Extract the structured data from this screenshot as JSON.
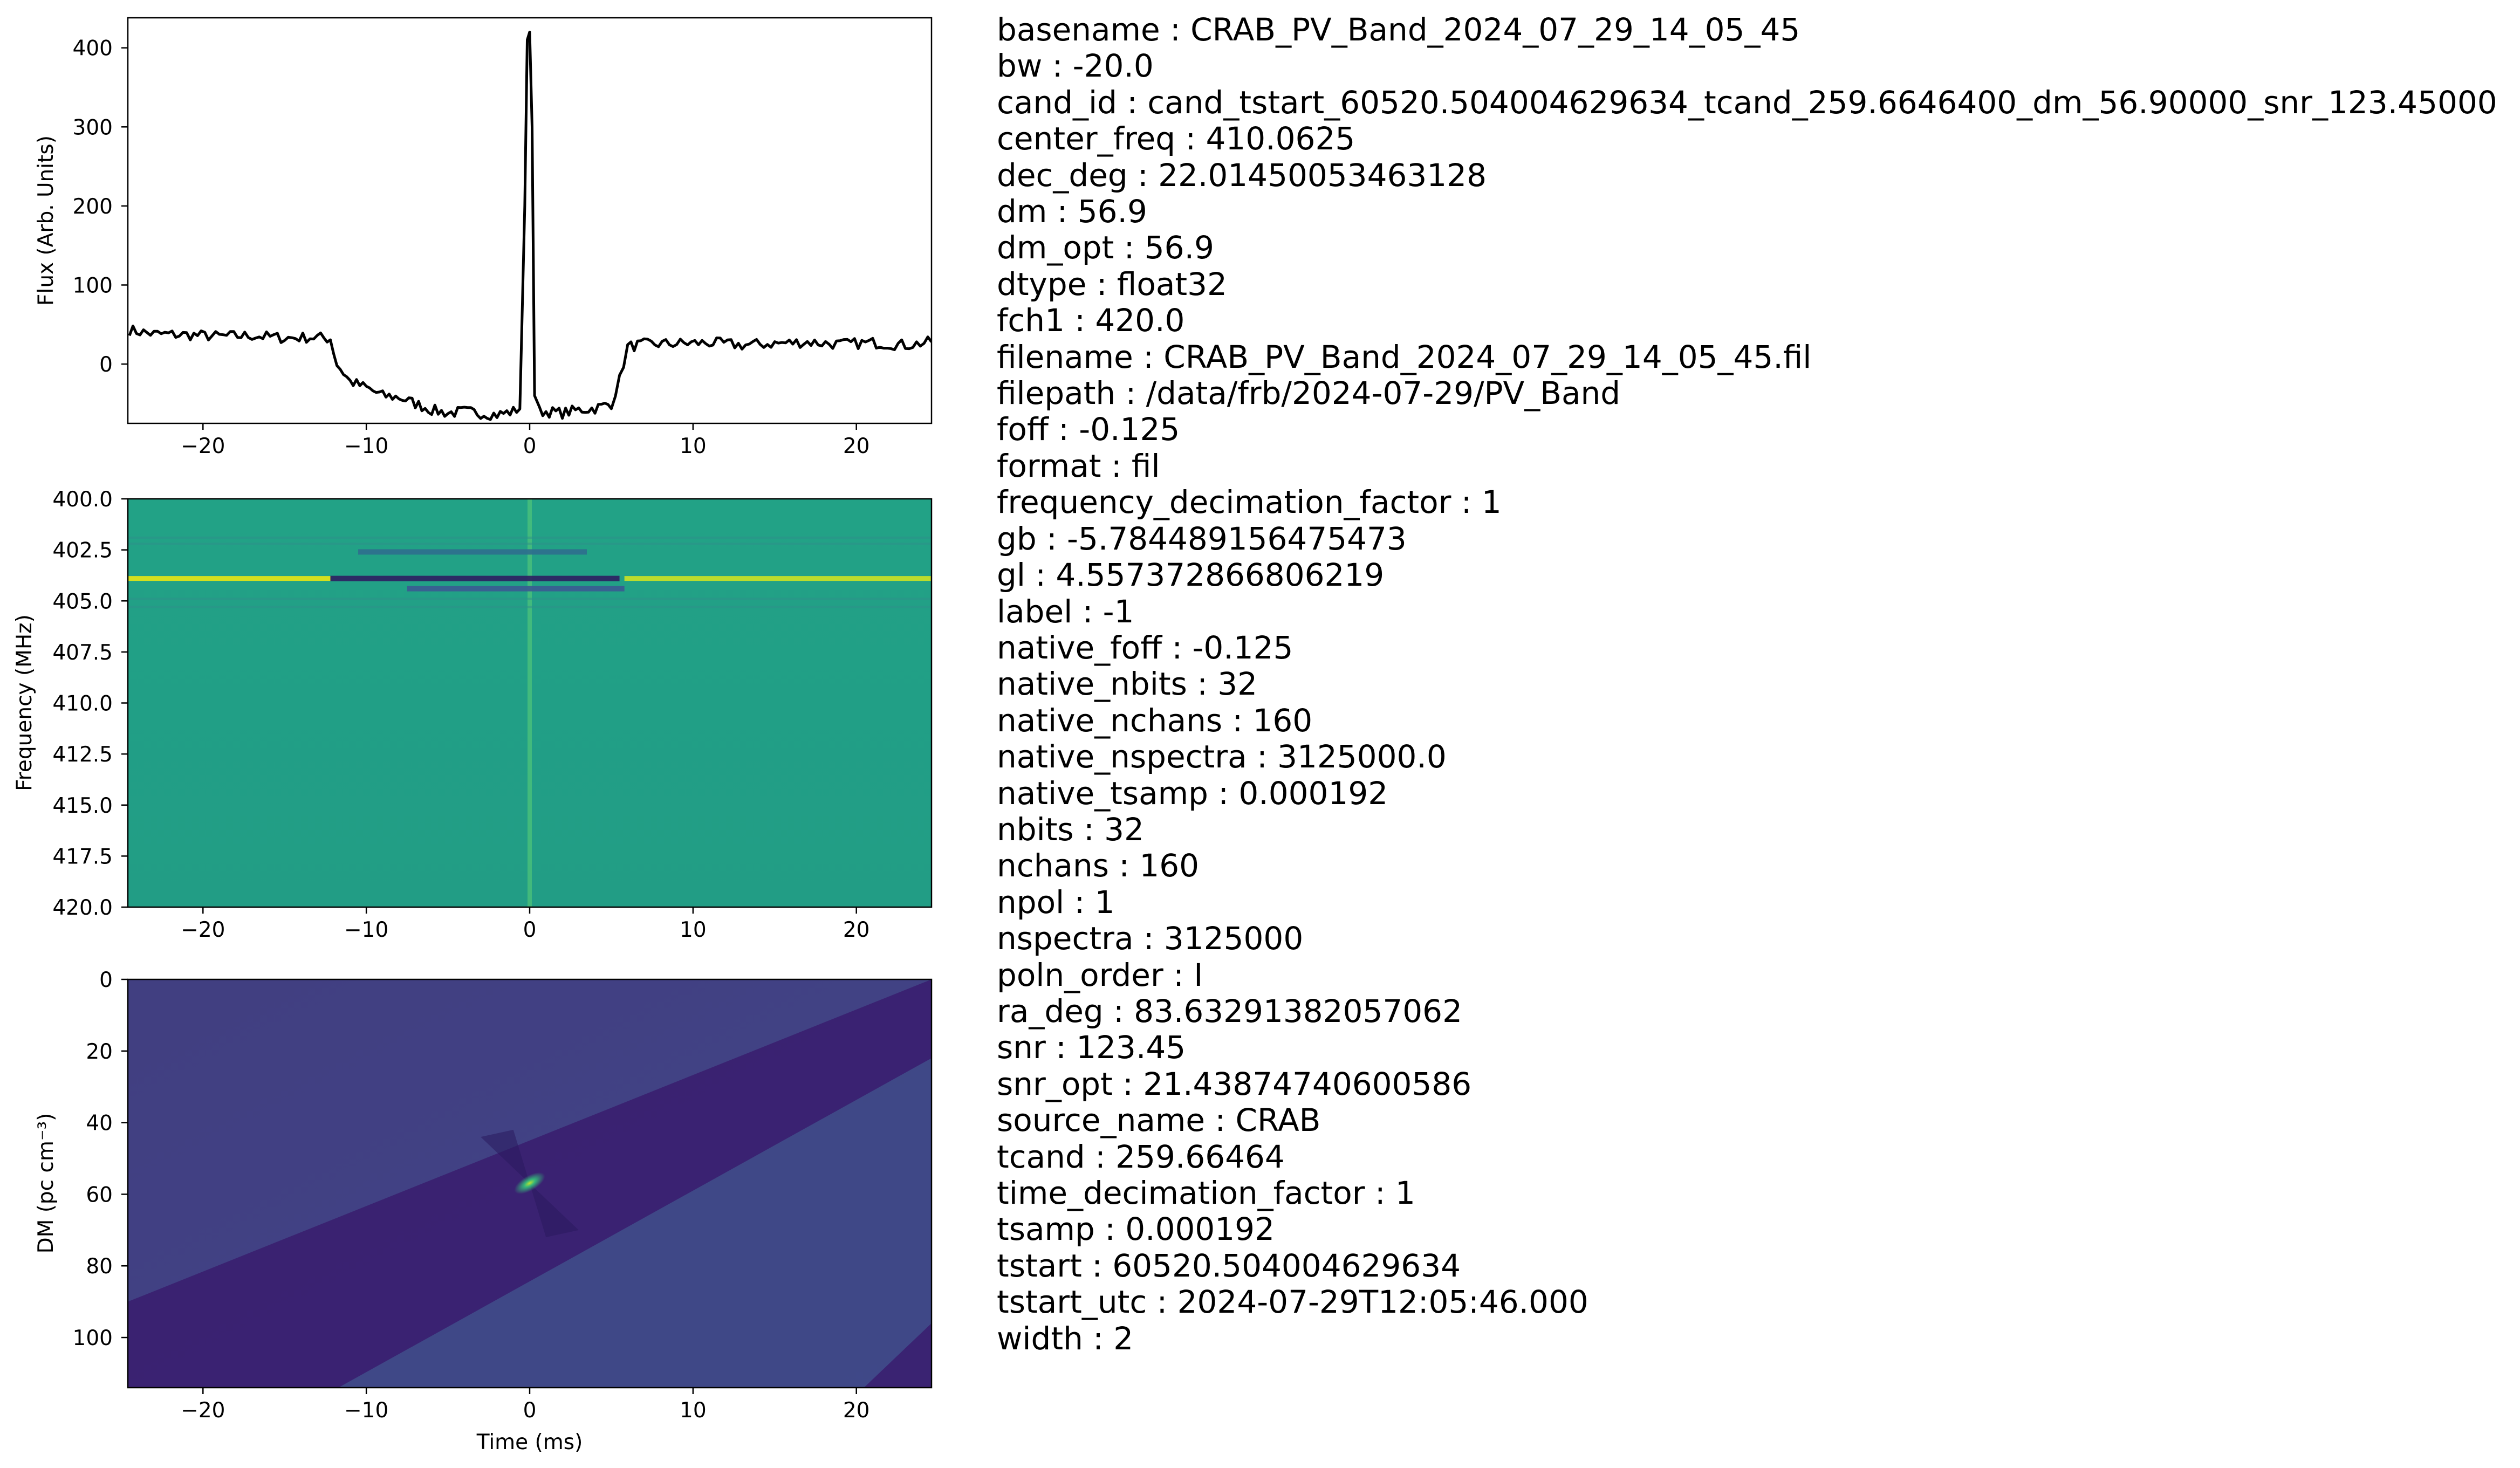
{
  "figure": {
    "panels": [
      {
        "id": "time-series",
        "ylabel": "Flux (Arb. Units)",
        "xlabel": "",
        "xticks": [
          "−20",
          "−10",
          "0",
          "10",
          "20"
        ],
        "yticks": [
          "0",
          "100",
          "200",
          "300",
          "400"
        ]
      },
      {
        "id": "dynamic-spectrum",
        "ylabel": "Frequency (MHz)",
        "xlabel": "",
        "xticks": [
          "−20",
          "−10",
          "0",
          "10",
          "20"
        ],
        "yticks": [
          "400.0",
          "402.5",
          "405.0",
          "407.5",
          "410.0",
          "412.5",
          "415.0",
          "417.5",
          "420.0"
        ]
      },
      {
        "id": "dm-time",
        "ylabel": "DM (pc cm⁻³)",
        "xlabel": "Time (ms)",
        "xticks": [
          "−20",
          "−10",
          "0",
          "10",
          "20"
        ],
        "yticks": [
          "0",
          "20",
          "40",
          "60",
          "80",
          "100"
        ]
      }
    ],
    "colors": {
      "line": "#000000",
      "viridis_mid": "#21a085",
      "viridis_dark": "#3b2f7e",
      "viridis_deep": "#3f1a6a",
      "viridis_bright": "#dde318"
    }
  },
  "chart_data": [
    {
      "type": "line",
      "title": "",
      "xlabel": "",
      "ylabel": "Flux (Arb. Units)",
      "xlim": [
        -24.6,
        24.6
      ],
      "ylim": [
        -75,
        438
      ],
      "series": [
        {
          "x": [
            -24.5,
            -23,
            -21,
            -19,
            -17,
            -15,
            -13,
            -12.2,
            -11.8,
            -11,
            -10,
            -9,
            -8,
            -7,
            -6,
            -5,
            -4,
            -3,
            -2,
            -1,
            -0.6,
            -0.3,
            -0.15,
            0,
            0.15,
            0.3,
            0.6,
            1,
            2,
            3,
            4,
            5,
            5.5,
            6,
            7,
            9,
            11,
            13,
            15,
            17,
            19,
            21,
            23,
            24.6
          ],
          "y": [
            43,
            38,
            37,
            35,
            36,
            33,
            34,
            32,
            0,
            -22,
            -30,
            -40,
            -42,
            -50,
            -58,
            -62,
            -60,
            -62,
            -64,
            -60,
            -55,
            200,
            410,
            420,
            300,
            -40,
            -60,
            -60,
            -62,
            -58,
            -56,
            -50,
            -20,
            22,
            25,
            26,
            27,
            24,
            26,
            28,
            25,
            27,
            24,
            28
          ]
        }
      ]
    },
    {
      "type": "heatmap",
      "title": "",
      "xlabel": "",
      "ylabel": "Frequency (MHz)",
      "xlim": [
        -24.6,
        24.6
      ],
      "ylim": [
        420.0,
        400.0
      ],
      "features": [
        {
          "kind": "vertical-line",
          "x": 0,
          "freq_range": [
            400.0,
            420.0
          ],
          "color": "#4dc37a"
        },
        {
          "kind": "rfi-bright-channel",
          "freq": 403.9,
          "x_range": [
            -24.6,
            -12.2
          ],
          "color": "#dde318"
        },
        {
          "kind": "rfi-bright-channel",
          "freq": 403.9,
          "x_range": [
            5.8,
            24.6
          ],
          "color": "#c4df28"
        },
        {
          "kind": "dark-channel",
          "freq": 403.9,
          "x_range": [
            -12.2,
            5.5
          ],
          "color": "#2d1f62"
        },
        {
          "kind": "dark-channel",
          "freq": 402.6,
          "x_range": [
            -10.5,
            3.5
          ],
          "color": "#2f6e8e"
        },
        {
          "kind": "dark-channel",
          "freq": 404.4,
          "x_range": [
            -7.5,
            5.8
          ],
          "color": "#3b5a92"
        }
      ]
    },
    {
      "type": "heatmap",
      "title": "",
      "xlabel": "Time (ms)",
      "ylabel": "DM (pc cm⁻³)",
      "xlim": [
        -24.6,
        24.6
      ],
      "ylim": [
        114,
        0
      ],
      "features": [
        {
          "kind": "peak",
          "x": 0,
          "dm": 56.9,
          "color": "#7fd34e"
        },
        {
          "kind": "dark-diagonal-band",
          "color": "#3a1c6e"
        },
        {
          "kind": "dark-corner-band",
          "color": "#3a1c6e"
        }
      ]
    }
  ],
  "metadata": [
    "basename : CRAB_PV_Band_2024_07_29_14_05_45",
    "bw : -20.0",
    "cand_id : cand_tstart_60520.504004629634_tcand_259.6646400_dm_56.90000_snr_123.45000",
    "center_freq : 410.0625",
    "dec_deg : 22.01450053463128",
    "dm : 56.9",
    "dm_opt : 56.9",
    "dtype : float32",
    "fch1 : 420.0",
    "filename : CRAB_PV_Band_2024_07_29_14_05_45.fil",
    "filepath : /data/frb/2024-07-29/PV_Band",
    "foff : -0.125",
    "format : fil",
    "frequency_decimation_factor : 1",
    "gb : -5.784489156475473",
    "gl : 4.557372866806219",
    "label : -1",
    "native_foff : -0.125",
    "native_nbits : 32",
    "native_nchans : 160",
    "native_nspectra : 3125000.0",
    "native_tsamp : 0.000192",
    "nbits : 32",
    "nchans : 160",
    "npol : 1",
    "nspectra : 3125000",
    "poln_order : I",
    "ra_deg : 83.63291382057062",
    "snr : 123.45",
    "snr_opt : 21.43874740600586",
    "source_name : CRAB",
    "tcand : 259.66464",
    "time_decimation_factor : 1",
    "tsamp : 0.000192",
    "tstart : 60520.504004629634",
    "tstart_utc : 2024-07-29T12:05:46.000",
    "width : 2"
  ]
}
